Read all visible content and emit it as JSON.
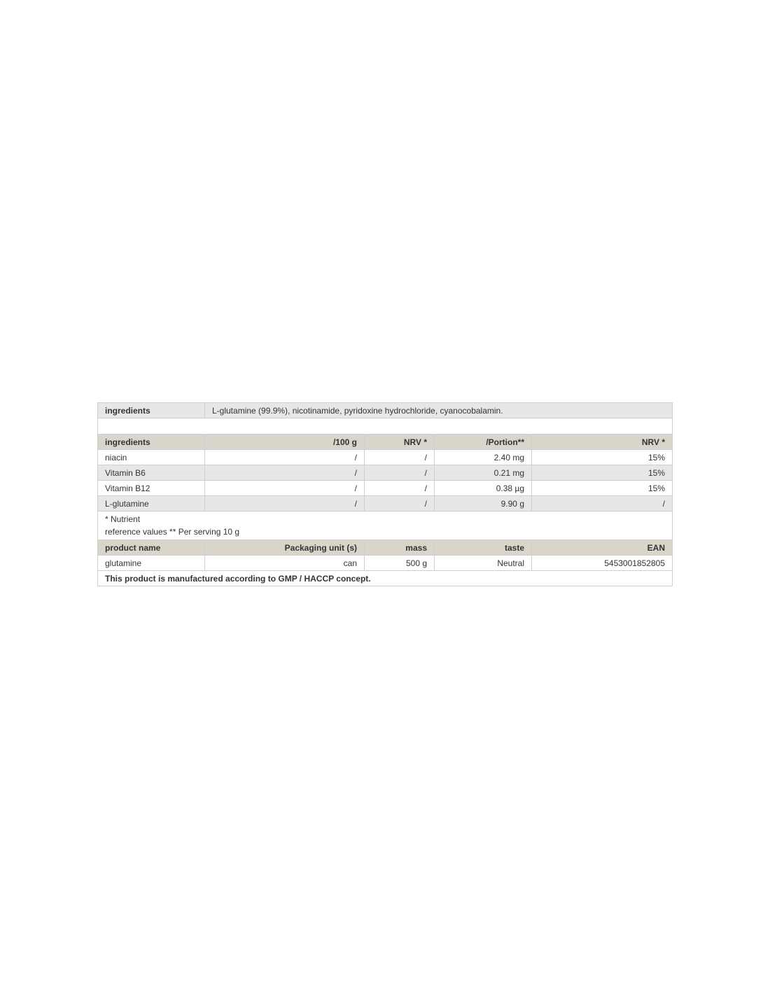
{
  "ingredients_row": {
    "label": "ingredients",
    "value": "L-glutamine (99.9%), nicotinamide, pyridoxine hydrochloride, cyanocobalamin."
  },
  "nutrition": {
    "headers": [
      "ingredients",
      "/100 g",
      "NRV *",
      "/Portion**",
      "NRV *"
    ],
    "rows": [
      [
        "niacin",
        "/",
        "/",
        "2.40 mg",
        "15%"
      ],
      [
        "Vitamin B6",
        "/",
        "/",
        "0.21 mg",
        "15%"
      ],
      [
        "Vitamin B12",
        "/",
        "/",
        "0.38 µg",
        "15%"
      ],
      [
        "L-glutamine",
        "/",
        "/",
        "9.90 g",
        "/"
      ]
    ]
  },
  "footnote": {
    "line1": "* Nutrient",
    "line2": "reference values ** Per serving 10 g"
  },
  "product": {
    "headers": [
      "product name",
      "Packaging unit (s)",
      "mass",
      "taste",
      "EAN"
    ],
    "row": [
      "glutamine",
      "can",
      "500 g",
      "Neutral",
      "5453001852805"
    ]
  },
  "manufacturing_note": "This product is manufactured according to GMP / HACCP concept.",
  "colors": {
    "header_bg": "#d9d5cb",
    "alt_row_bg": "#e7e7e7",
    "border": "#cfcfcf"
  }
}
